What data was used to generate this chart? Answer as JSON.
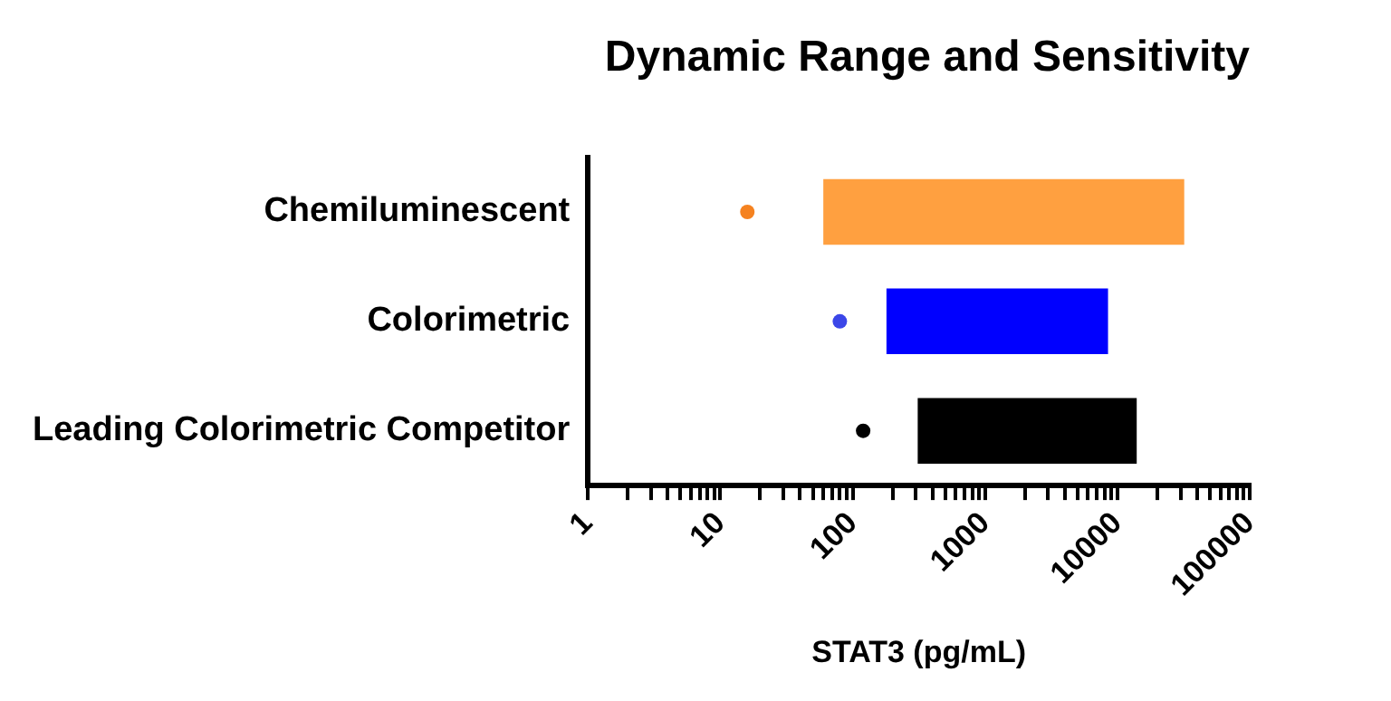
{
  "chart_data": {
    "type": "bar",
    "orientation": "horizontal",
    "title": "Dynamic Range and Sensitivity",
    "xlabel": "STAT3 (pg/mL)",
    "categories": [
      "Chemiluminescent",
      "Colorimetric",
      "Leading Colorimetric Competitor"
    ],
    "log": "x",
    "xlim": [
      1,
      100000
    ],
    "xticks": [
      1,
      {
        "value": 2,
        "label": null
      },
      {
        "value": 3,
        "label": null
      },
      {
        "value": 4,
        "label": null
      },
      {
        "value": 5,
        "label": null
      },
      {
        "value": 6,
        "label": null
      },
      {
        "value": 7,
        "label": null
      },
      {
        "value": 8,
        "label": null
      },
      {
        "value": 9,
        "label": null
      },
      10,
      {
        "value": 20,
        "label": null
      },
      {
        "value": 30,
        "label": null
      },
      {
        "value": 40,
        "label": null
      },
      {
        "value": 50,
        "label": null
      },
      {
        "value": 60,
        "label": null
      },
      {
        "value": 70,
        "label": null
      },
      {
        "value": 80,
        "label": null
      },
      {
        "value": 90,
        "label": null
      },
      100,
      {
        "value": 200,
        "label": null
      },
      {
        "value": 300,
        "label": null
      },
      {
        "value": 400,
        "label": null
      },
      {
        "value": 500,
        "label": null
      },
      {
        "value": 600,
        "label": null
      },
      {
        "value": 700,
        "label": null
      },
      {
        "value": 800,
        "label": null
      },
      {
        "value": 900,
        "label": null
      },
      1000,
      {
        "value": 2000,
        "label": null
      },
      {
        "value": 3000,
        "label": null
      },
      {
        "value": 4000,
        "label": null
      },
      {
        "value": 5000,
        "label": null
      },
      {
        "value": 6000,
        "label": null
      },
      {
        "value": 7000,
        "label": null
      },
      {
        "value": 8000,
        "label": null
      },
      {
        "value": 9000,
        "label": null
      },
      10000,
      {
        "value": 20000,
        "label": null
      },
      {
        "value": 30000,
        "label": null
      },
      {
        "value": 40000,
        "label": null
      },
      {
        "value": 50000,
        "label": null
      },
      {
        "value": 60000,
        "label": null
      },
      {
        "value": 70000,
        "label": null
      },
      {
        "value": 80000,
        "label": null
      },
      {
        "value": 90000,
        "label": null
      },
      100000
    ],
    "grid": false,
    "legend": false,
    "series": [
      {
        "base": [
          60,
          180,
          310
        ],
        "values": [
          31940,
          8320,
          13690
        ],
        "colors": [
          "#ffa040",
          "#0000ff",
          "#000000"
        ]
      },
      {
        "type": "scatter",
        "x": [
          "Chemiluminescent",
          "Colorimetric",
          "Leading Colorimetric Competitor"
        ],
        "values": [
          16,
          80,
          120
        ],
        "colors": [
          "#f58220",
          "#3b46e8",
          "#000000"
        ],
        "marker": "circle"
      }
    ]
  }
}
